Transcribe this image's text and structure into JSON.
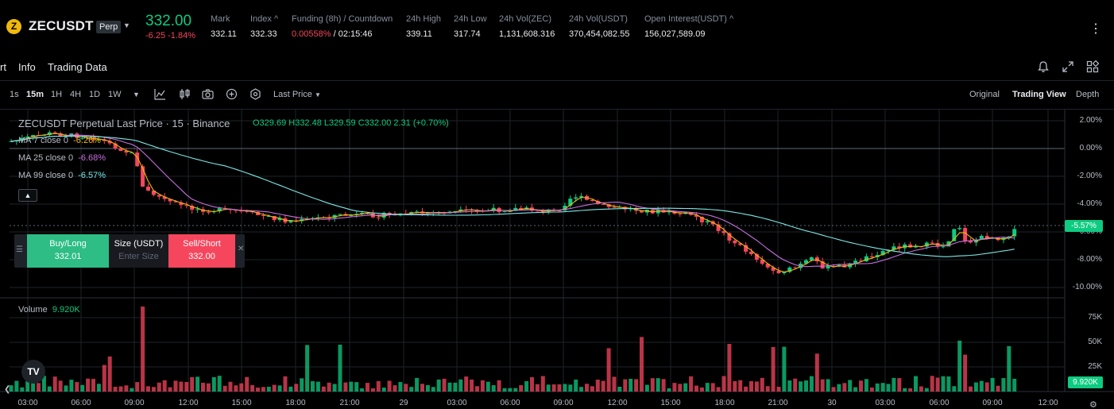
{
  "ticker": {
    "logo_letter": "Z",
    "symbol": "ZECUSDT",
    "badge": "Perp",
    "last_price": "332.00",
    "change": "-6.25 -1.84%",
    "stats": [
      {
        "label": "Mark",
        "value": "332.11"
      },
      {
        "label": "Index",
        "value": "332.33"
      },
      {
        "label": "Funding (8h) / Countdown",
        "value_red": "0.00558%",
        "value": " / 02:15:46"
      },
      {
        "label": "24h High",
        "value": "339.11"
      },
      {
        "label": "24h Low",
        "value": "317.74"
      },
      {
        "label": "24h Vol(ZEC)",
        "value": "1,131,608.316"
      },
      {
        "label": "24h Vol(USDT)",
        "value": "370,454,082.55"
      },
      {
        "label": "Open Interest(USDT)",
        "value": "156,027,589.09"
      }
    ]
  },
  "subtabs": [
    "rt",
    "Info",
    "Trading Data"
  ],
  "toolbar": {
    "timeframes": [
      "1s",
      "15m",
      "1H",
      "4H",
      "1D",
      "1W"
    ],
    "active_timeframe": "15m",
    "price_type": "Last Price",
    "views": [
      "Original",
      "Trading View",
      "Depth"
    ],
    "active_view": "Trading View"
  },
  "chart": {
    "title": "ZECUSDT Perpetual Last Price · 15 · Binance",
    "ohlc": "O329.69 H332.48 L329.59 C332.00 2.31 (+0.70%)",
    "ma": [
      {
        "label": "MA 7 close 0",
        "value": "-6.26%"
      },
      {
        "label": "MA 25 close 0",
        "value": "-6.68%"
      },
      {
        "label": "MA 99 close 0",
        "value": "-6.57%"
      }
    ],
    "volume_label": "Volume",
    "volume_value": "9.920K",
    "price_axis": [
      "2.00%",
      "0.00%",
      "-2.00%",
      "-4.00%",
      "-5.57%",
      "-6.00%",
      "-8.00%",
      "-10.00%"
    ],
    "current_tag": "-5.57%",
    "volume_axis": [
      "75K",
      "50K",
      "25K"
    ],
    "volume_tag": "9.920K",
    "time_axis": [
      "03:00",
      "06:00",
      "09:00",
      "12:00",
      "15:00",
      "18:00",
      "21:00",
      "29",
      "03:00",
      "06:00",
      "09:00",
      "12:00",
      "15:00",
      "18:00",
      "21:00",
      "30",
      "03:00",
      "06:00",
      "09:00",
      "12:00"
    ],
    "colors": {
      "up": "#0ecb81",
      "down": "#f6465d",
      "ma7": "#f0b90b",
      "ma25": "#c86ee0",
      "ma99": "#7de7e7"
    }
  },
  "order_panel": {
    "buy_label": "Buy/Long",
    "buy_price": "332.01",
    "size_label": "Size (USDT)",
    "size_placeholder": "Enter Size",
    "sell_label": "Sell/Short",
    "sell_price": "332.00"
  },
  "tv_logo": "TV"
}
